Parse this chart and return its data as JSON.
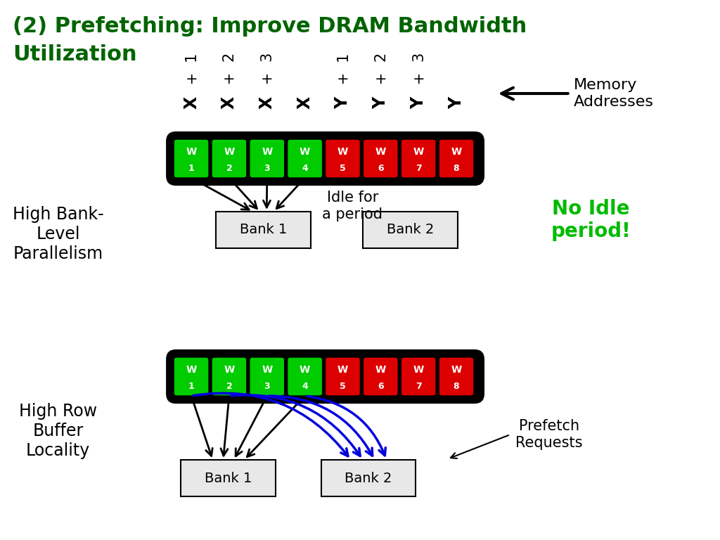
{
  "title_line1": "(2) Prefetching: Improve DRAM Bandwidth",
  "title_line2": "Utilization",
  "title_color": "#006400",
  "bg_color": "#ffffff",
  "green_color": "#00bb00",
  "red_color": "#dd0000",
  "cell_labels": [
    "W\n1",
    "W\n2",
    "W\n3",
    "W\n4",
    "W\n5",
    "W\n6",
    "W\n7",
    "W\n8"
  ],
  "cell_colors": [
    "#00cc00",
    "#00cc00",
    "#00cc00",
    "#00cc00",
    "#dd0000",
    "#dd0000",
    "#dd0000",
    "#dd0000"
  ],
  "top_row_labels": [
    "X",
    "X",
    "X",
    "X",
    "Y",
    "Y",
    "Y",
    "Y"
  ],
  "top_row_labels2": [
    "+",
    "+",
    "+",
    "+",
    "+",
    "+",
    "+",
    "+"
  ],
  "top_row_labels3": [
    "1",
    "2",
    "3",
    "",
    "1",
    "2",
    "3",
    ""
  ],
  "bank1_label": "Bank 1",
  "bank2_label": "Bank 2",
  "idle_text": "Idle for\na period",
  "no_idle_text": "No Idle\nperiod!",
  "no_idle_color": "#00bb00",
  "memory_addr_text": "Memory\nAddresses",
  "high_bank_text": "High Bank-\nLevel\nParallelism",
  "high_row_text": "High Row\nBuffer\nLocality",
  "prefetch_text": "Prefetch\nRequests",
  "arrow_color": "#000000",
  "blue_arrow_color": "#0000dd"
}
